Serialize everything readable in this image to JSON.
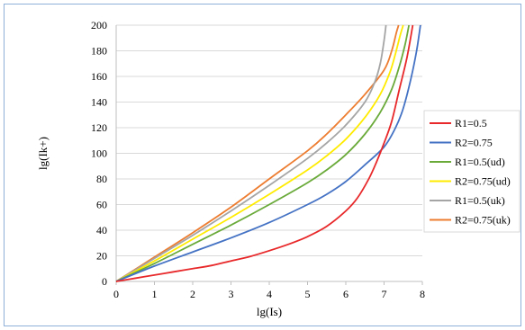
{
  "chart_data": {
    "type": "line",
    "title": "",
    "xlabel": "lg(Is)",
    "ylabel": "lg(Ik+)",
    "xlim": [
      0,
      8
    ],
    "ylim": [
      0,
      200
    ],
    "x_ticks": [
      "0",
      "1",
      "2",
      "3",
      "4",
      "5",
      "6",
      "7",
      "8"
    ],
    "y_ticks": [
      "0",
      "20",
      "40",
      "60",
      "80",
      "100",
      "120",
      "140",
      "160",
      "180",
      "200"
    ],
    "grid": "horizontal",
    "legend_position": "right",
    "series": [
      {
        "name": "R1=0.5",
        "color": "#e8282a",
        "x": [
          0,
          0.5,
          1,
          1.5,
          2,
          2.5,
          3,
          3.5,
          4,
          4.5,
          5,
          5.5,
          6,
          6.3,
          6.6,
          6.8,
          7.0,
          7.2,
          7.4,
          7.6,
          7.75
        ],
        "y": [
          0,
          2.5,
          5,
          7.5,
          10,
          12.5,
          16,
          19.5,
          24,
          29,
          35,
          43,
          55,
          65,
          80,
          93,
          108,
          125,
          150,
          175,
          200
        ]
      },
      {
        "name": "R2=0.75",
        "color": "#4472c4",
        "x": [
          0,
          1,
          2,
          3,
          4,
          5,
          5.5,
          6,
          6.5,
          7,
          7.3,
          7.5,
          7.7,
          7.85,
          7.95
        ],
        "y": [
          0,
          12,
          23,
          34,
          46,
          60,
          68,
          78,
          91,
          105,
          120,
          135,
          158,
          180,
          200
        ]
      },
      {
        "name": "R1=0.5(ud)",
        "color": "#6aaa3a",
        "x": [
          0,
          1,
          2,
          3,
          4,
          5,
          5.5,
          6,
          6.5,
          6.9,
          7.2,
          7.4,
          7.55,
          7.65
        ],
        "y": [
          0,
          14,
          29,
          44,
          60,
          77,
          87,
          99,
          115,
          132,
          150,
          168,
          185,
          200
        ]
      },
      {
        "name": "R2=0.75(ud)",
        "color": "#ffeb00",
        "x": [
          0,
          1,
          2,
          3,
          4,
          5,
          5.5,
          6,
          6.5,
          6.9,
          7.15,
          7.3,
          7.42,
          7.5
        ],
        "y": [
          0,
          16,
          33,
          50,
          68,
          87,
          98,
          111,
          128,
          146,
          163,
          178,
          192,
          200
        ]
      },
      {
        "name": "R1=0.5(uk)",
        "color": "#a5a5a5",
        "x": [
          0,
          1,
          2,
          3,
          4,
          5,
          5.5,
          6,
          6.5,
          6.75,
          6.9,
          7.0,
          7.05
        ],
        "y": [
          0,
          18,
          36,
          55,
          75,
          96,
          108,
          122,
          140,
          155,
          170,
          188,
          200
        ]
      },
      {
        "name": "R2=0.75(uk)",
        "color": "#ed7d31",
        "x": [
          0,
          1,
          2,
          3,
          4,
          5,
          5.5,
          6,
          6.5,
          7.0,
          7.2,
          7.32,
          7.38
        ],
        "y": [
          0,
          19,
          38,
          58,
          80,
          102,
          115,
          130,
          146,
          165,
          180,
          194,
          200
        ]
      }
    ]
  }
}
